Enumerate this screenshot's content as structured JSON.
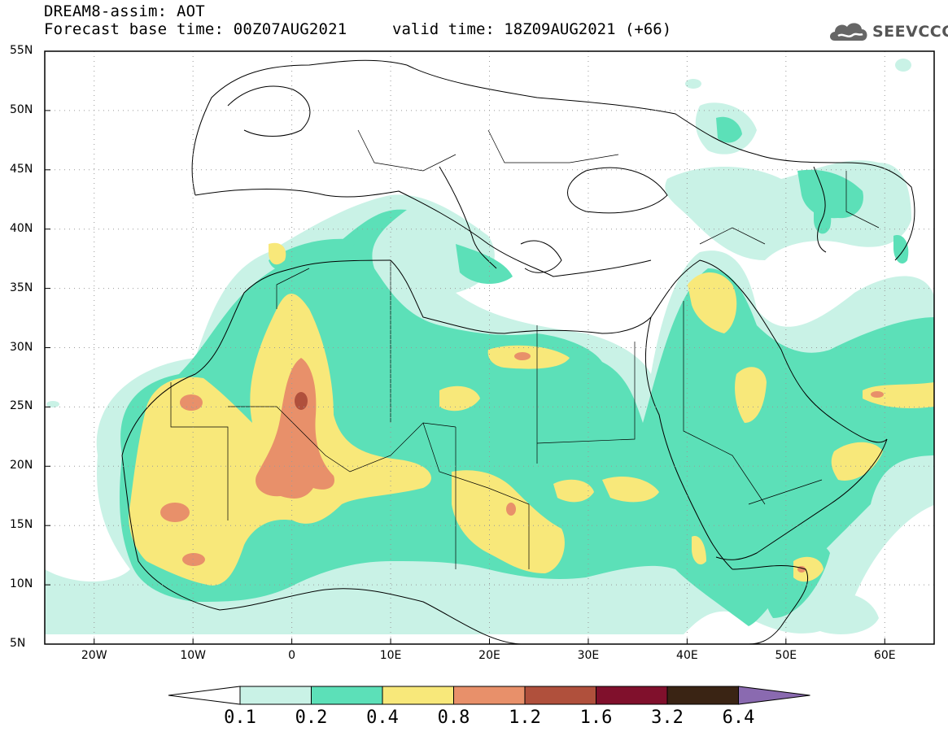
{
  "header": {
    "title": "DREAM8-assim: AOT",
    "base_time": "Forecast base time: 00Z07AUG2021",
    "valid_time": "valid time: 18Z09AUG2021 (+66)",
    "logo_text": "SEEVCCC"
  },
  "map": {
    "lon_range": [
      -25,
      65
    ],
    "lat_range": [
      5,
      55
    ],
    "lat_ticks": [
      {
        "value": 55,
        "label": "55N"
      },
      {
        "value": 50,
        "label": "50N"
      },
      {
        "value": 45,
        "label": "45N"
      },
      {
        "value": 40,
        "label": "40N"
      },
      {
        "value": 35,
        "label": "35N"
      },
      {
        "value": 30,
        "label": "30N"
      },
      {
        "value": 25,
        "label": "25N"
      },
      {
        "value": 20,
        "label": "20N"
      },
      {
        "value": 15,
        "label": "15N"
      },
      {
        "value": 10,
        "label": "10N"
      },
      {
        "value": 5,
        "label": "5N"
      }
    ],
    "lon_ticks": [
      {
        "value": -20,
        "label": "20W"
      },
      {
        "value": -10,
        "label": "10W"
      },
      {
        "value": 0,
        "label": "0"
      },
      {
        "value": 10,
        "label": "10E"
      },
      {
        "value": 20,
        "label": "20E"
      },
      {
        "value": 30,
        "label": "30E"
      },
      {
        "value": 40,
        "label": "40E"
      },
      {
        "value": 50,
        "label": "50E"
      },
      {
        "value": 60,
        "label": "60E"
      }
    ],
    "grid": "dotted"
  },
  "colorbar": {
    "levels": [
      "0.1",
      "0.2",
      "0.4",
      "0.8",
      "1.2",
      "1.6",
      "3.2",
      "6.4"
    ],
    "colors": [
      "#c9f2e6",
      "#5ce0b8",
      "#f8e87a",
      "#e8906a",
      "#b0503c",
      "#80102c",
      "#3a2414"
    ],
    "under_color": "#ffffff",
    "over_color": "#8a6ab0"
  },
  "colors": {
    "light": "#c9f2e6",
    "green": "#5ce0b8",
    "yellow": "#f8e87a",
    "orange": "#e8906a",
    "brown": "#b0503c"
  }
}
